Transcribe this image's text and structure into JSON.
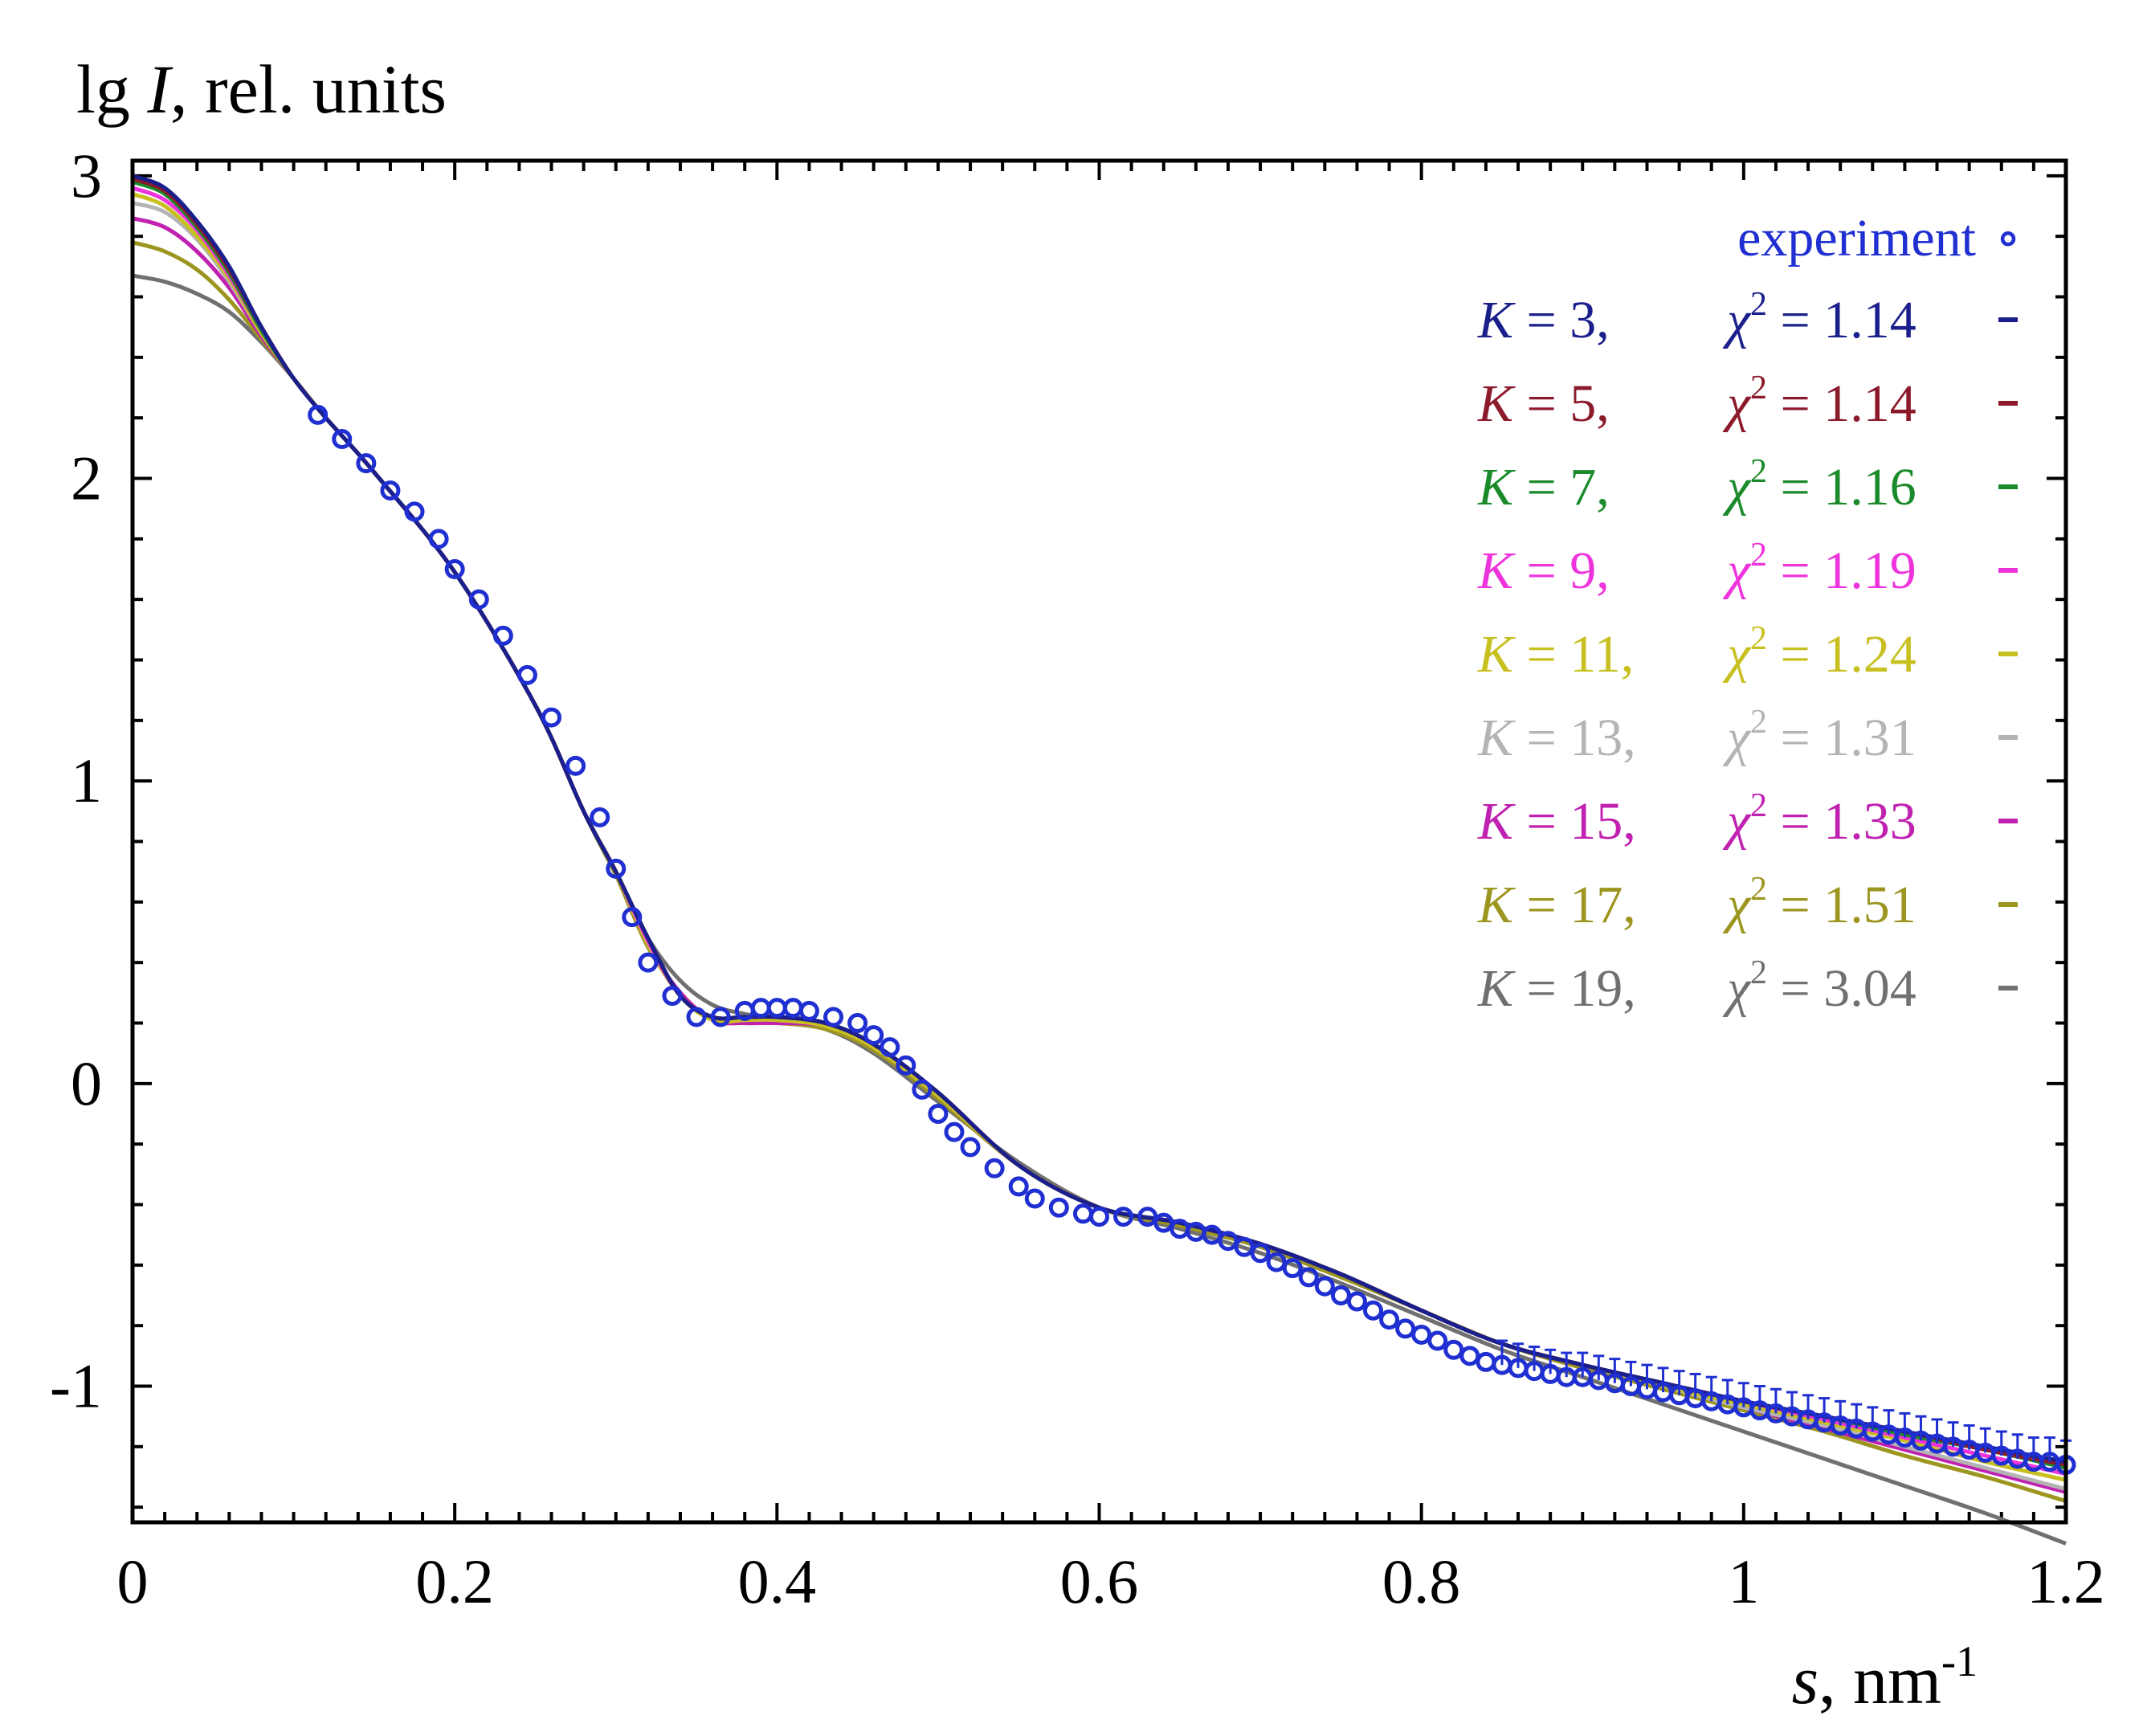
{
  "chart_data": {
    "type": "line",
    "title": "",
    "ylabel": "lg I, rel. units",
    "ylabel_parts": {
      "prefix": "lg ",
      "var": "I",
      "suffix": ", rel. units"
    },
    "xlabel": "s, nm-1",
    "xlabel_parts": {
      "var": "s",
      "unit": ", nm",
      "exp": "-1"
    },
    "xlim": [
      0,
      1.2
    ],
    "ylim": [
      -1.45,
      3.05
    ],
    "x_ticks": [
      0,
      0.2,
      0.4,
      0.6,
      0.8,
      1,
      1.2
    ],
    "x_tick_labels": [
      "0",
      "0.2",
      "0.4",
      "0.6",
      "0.8",
      "1",
      "1.2"
    ],
    "y_ticks": [
      3,
      2,
      1,
      0,
      -1
    ],
    "y_tick_labels": [
      "3",
      "2",
      "1",
      "0",
      "-1"
    ],
    "legend_position": "top-right",
    "experiment": {
      "label": "experiment",
      "marker_glyph": "∘",
      "color": "#1f2fd1",
      "x": [
        0.115,
        0.13,
        0.145,
        0.16,
        0.175,
        0.19,
        0.2,
        0.215,
        0.23,
        0.245,
        0.26,
        0.275,
        0.29,
        0.3,
        0.31,
        0.32,
        0.335,
        0.35,
        0.365,
        0.38,
        0.39,
        0.4,
        0.41,
        0.42,
        0.435,
        0.45,
        0.46,
        0.47,
        0.48,
        0.49,
        0.5,
        0.51,
        0.52,
        0.535,
        0.55,
        0.56,
        0.575,
        0.59,
        0.6,
        0.615,
        0.63,
        0.64,
        0.65,
        0.66,
        0.67,
        0.68,
        0.69,
        0.7,
        0.71,
        0.72,
        0.73,
        0.74,
        0.75,
        0.76,
        0.77,
        0.78,
        0.79,
        0.8,
        0.81,
        0.82,
        0.83,
        0.84,
        0.85,
        0.86,
        0.87,
        0.88,
        0.89,
        0.9,
        0.91,
        0.92,
        0.93,
        0.94,
        0.95,
        0.96,
        0.97,
        0.98,
        0.99,
        1.0,
        1.01,
        1.02,
        1.03,
        1.04,
        1.05,
        1.06,
        1.07,
        1.08,
        1.09,
        1.1,
        1.11,
        1.12,
        1.13,
        1.14,
        1.15,
        1.16,
        1.17,
        1.18,
        1.19,
        1.2
      ],
      "y": [
        2.21,
        2.13,
        2.05,
        1.96,
        1.89,
        1.8,
        1.7,
        1.6,
        1.48,
        1.35,
        1.21,
        1.05,
        0.88,
        0.71,
        0.55,
        0.4,
        0.29,
        0.22,
        0.22,
        0.24,
        0.25,
        0.25,
        0.25,
        0.24,
        0.22,
        0.2,
        0.16,
        0.12,
        0.06,
        -0.02,
        -0.1,
        -0.16,
        -0.21,
        -0.28,
        -0.34,
        -0.38,
        -0.41,
        -0.43,
        -0.44,
        -0.44,
        -0.44,
        -0.46,
        -0.48,
        -0.49,
        -0.5,
        -0.52,
        -0.54,
        -0.56,
        -0.59,
        -0.61,
        -0.64,
        -0.67,
        -0.7,
        -0.72,
        -0.75,
        -0.78,
        -0.81,
        -0.83,
        -0.85,
        -0.88,
        -0.9,
        -0.92,
        -0.93,
        -0.94,
        -0.95,
        -0.96,
        -0.97,
        -0.97,
        -0.98,
        -0.99,
        -1.0,
        -1.01,
        -1.02,
        -1.03,
        -1.04,
        -1.05,
        -1.06,
        -1.07,
        -1.08,
        -1.09,
        -1.1,
        -1.11,
        -1.12,
        -1.13,
        -1.14,
        -1.15,
        -1.16,
        -1.17,
        -1.18,
        -1.19,
        -1.2,
        -1.21,
        -1.22,
        -1.23,
        -1.24,
        -1.25,
        -1.25,
        -1.26
      ],
      "error_bars_from_x": 0.85,
      "error_plus": [
        0.08,
        0.08,
        0.08,
        0.08,
        0.08,
        0.08,
        0.08,
        0.08,
        0.08,
        0.08,
        0.08,
        0.08,
        0.08,
        0.08,
        0.08,
        0.08,
        0.08,
        0.08,
        0.08,
        0.08,
        0.08,
        0.08,
        0.08,
        0.08,
        0.08,
        0.08,
        0.08,
        0.08,
        0.08,
        0.08,
        0.08,
        0.08,
        0.08,
        0.08,
        0.08,
        0.08,
        0.08,
        0.08,
        0.08,
        0.08,
        0.08,
        0.08,
        0.08,
        0.08,
        0.08,
        0.08,
        0.08,
        0.08,
        0.08,
        0.08,
        0.08,
        0.08,
        0.08,
        0.08,
        0.08,
        0.08,
        0.08,
        0.08,
        0.08,
        0.08,
        0.08,
        0.08,
        0.08,
        0.08,
        0.08,
        0.08,
        0.08,
        0.08,
        0.08,
        0.08,
        0.08,
        0.08,
        0.08,
        0.08,
        0.08,
        0.08,
        0.08,
        0.08,
        0.08,
        0.08,
        0.08,
        0.08,
        0.08,
        0.08,
        0.08,
        0.08,
        0.08,
        0.08,
        0.08,
        0.08,
        0.08,
        0.08,
        0.08,
        0.08,
        0.08,
        0.08,
        0.08,
        0.08
      ]
    },
    "fit_x": [
      0,
      0.02,
      0.04,
      0.06,
      0.08,
      0.1,
      0.12,
      0.15,
      0.2,
      0.25,
      0.28,
      0.3,
      0.32,
      0.34,
      0.36,
      0.38,
      0.4,
      0.43,
      0.46,
      0.5,
      0.55,
      0.6,
      0.65,
      0.7,
      0.75,
      0.8,
      0.85,
      0.9,
      0.95,
      1.0,
      1.05,
      1.1,
      1.15,
      1.2
    ],
    "series": [
      {
        "K": "3",
        "chi2": "1.14",
        "color": "#1a1f8c",
        "values": [
          3.0,
          2.96,
          2.85,
          2.7,
          2.5,
          2.33,
          2.2,
          2.02,
          1.69,
          1.25,
          0.9,
          0.7,
          0.48,
          0.29,
          0.22,
          0.22,
          0.22,
          0.2,
          0.13,
          -0.03,
          -0.27,
          -0.41,
          -0.46,
          -0.53,
          -0.63,
          -0.75,
          -0.86,
          -0.93,
          -0.99,
          -1.05,
          -1.1,
          -1.15,
          -1.2,
          -1.25
        ]
      },
      {
        "K": "5",
        "chi2": "1.14",
        "color": "#8b1a2b",
        "values": [
          2.99,
          2.95,
          2.84,
          2.69,
          2.5,
          2.33,
          2.2,
          2.02,
          1.69,
          1.25,
          0.9,
          0.7,
          0.48,
          0.29,
          0.22,
          0.22,
          0.22,
          0.2,
          0.13,
          -0.03,
          -0.27,
          -0.41,
          -0.46,
          -0.53,
          -0.63,
          -0.75,
          -0.86,
          -0.93,
          -0.99,
          -1.05,
          -1.1,
          -1.15,
          -1.21,
          -1.26
        ]
      },
      {
        "K": "7",
        "chi2": "1.16",
        "color": "#1a8a2a",
        "values": [
          2.98,
          2.94,
          2.83,
          2.68,
          2.49,
          2.33,
          2.2,
          2.02,
          1.69,
          1.25,
          0.9,
          0.7,
          0.48,
          0.29,
          0.22,
          0.22,
          0.22,
          0.2,
          0.13,
          -0.03,
          -0.27,
          -0.41,
          -0.46,
          -0.53,
          -0.63,
          -0.75,
          -0.86,
          -0.93,
          -0.99,
          -1.05,
          -1.1,
          -1.16,
          -1.21,
          -1.27
        ]
      },
      {
        "K": "9",
        "chi2": "1.19",
        "color": "#ee33dd",
        "values": [
          2.96,
          2.92,
          2.82,
          2.67,
          2.49,
          2.33,
          2.2,
          2.02,
          1.69,
          1.25,
          0.9,
          0.7,
          0.47,
          0.29,
          0.22,
          0.22,
          0.22,
          0.2,
          0.13,
          -0.03,
          -0.27,
          -0.41,
          -0.46,
          -0.53,
          -0.63,
          -0.75,
          -0.86,
          -0.93,
          -0.99,
          -1.05,
          -1.11,
          -1.17,
          -1.23,
          -1.29
        ]
      },
      {
        "K": "11",
        "chi2": "1.24",
        "color": "#c8c020",
        "values": [
          2.94,
          2.9,
          2.8,
          2.66,
          2.48,
          2.33,
          2.2,
          2.02,
          1.69,
          1.25,
          0.9,
          0.7,
          0.46,
          0.29,
          0.21,
          0.21,
          0.21,
          0.19,
          0.12,
          -0.04,
          -0.27,
          -0.41,
          -0.46,
          -0.53,
          -0.63,
          -0.75,
          -0.86,
          -0.93,
          -1.0,
          -1.06,
          -1.12,
          -1.18,
          -1.25,
          -1.31
        ]
      },
      {
        "K": "13",
        "chi2": "1.31",
        "color": "#b4b4b4",
        "values": [
          2.91,
          2.88,
          2.79,
          2.65,
          2.48,
          2.33,
          2.2,
          2.02,
          1.69,
          1.25,
          0.9,
          0.7,
          0.46,
          0.29,
          0.21,
          0.21,
          0.21,
          0.19,
          0.12,
          -0.04,
          -0.27,
          -0.41,
          -0.46,
          -0.53,
          -0.63,
          -0.75,
          -0.86,
          -0.93,
          -1.0,
          -1.07,
          -1.13,
          -1.2,
          -1.27,
          -1.34
        ]
      },
      {
        "K": "15",
        "chi2": "1.33",
        "color": "#c021b0",
        "values": [
          2.86,
          2.83,
          2.75,
          2.63,
          2.47,
          2.33,
          2.2,
          2.02,
          1.69,
          1.25,
          0.9,
          0.7,
          0.46,
          0.3,
          0.21,
          0.2,
          0.2,
          0.19,
          0.12,
          -0.04,
          -0.27,
          -0.41,
          -0.46,
          -0.53,
          -0.63,
          -0.75,
          -0.86,
          -0.93,
          -1.0,
          -1.07,
          -1.14,
          -1.21,
          -1.28,
          -1.35
        ]
      },
      {
        "K": "17",
        "chi2": "1.51",
        "color": "#9c9520",
        "values": [
          2.78,
          2.75,
          2.69,
          2.59,
          2.46,
          2.33,
          2.2,
          2.02,
          1.69,
          1.25,
          0.9,
          0.69,
          0.45,
          0.3,
          0.21,
          0.2,
          0.2,
          0.18,
          0.11,
          -0.05,
          -0.27,
          -0.41,
          -0.47,
          -0.54,
          -0.64,
          -0.75,
          -0.86,
          -0.94,
          -1.01,
          -1.08,
          -1.15,
          -1.23,
          -1.3,
          -1.38
        ]
      },
      {
        "K": "19",
        "chi2": "3.04",
        "color": "#707070",
        "values": [
          2.67,
          2.65,
          2.61,
          2.55,
          2.45,
          2.33,
          2.2,
          2.02,
          1.69,
          1.25,
          0.9,
          0.69,
          0.48,
          0.34,
          0.26,
          0.23,
          0.21,
          0.18,
          0.1,
          -0.06,
          -0.26,
          -0.41,
          -0.48,
          -0.56,
          -0.66,
          -0.77,
          -0.88,
          -0.97,
          -1.06,
          -1.15,
          -1.24,
          -1.33,
          -1.42,
          -1.52
        ]
      }
    ]
  }
}
